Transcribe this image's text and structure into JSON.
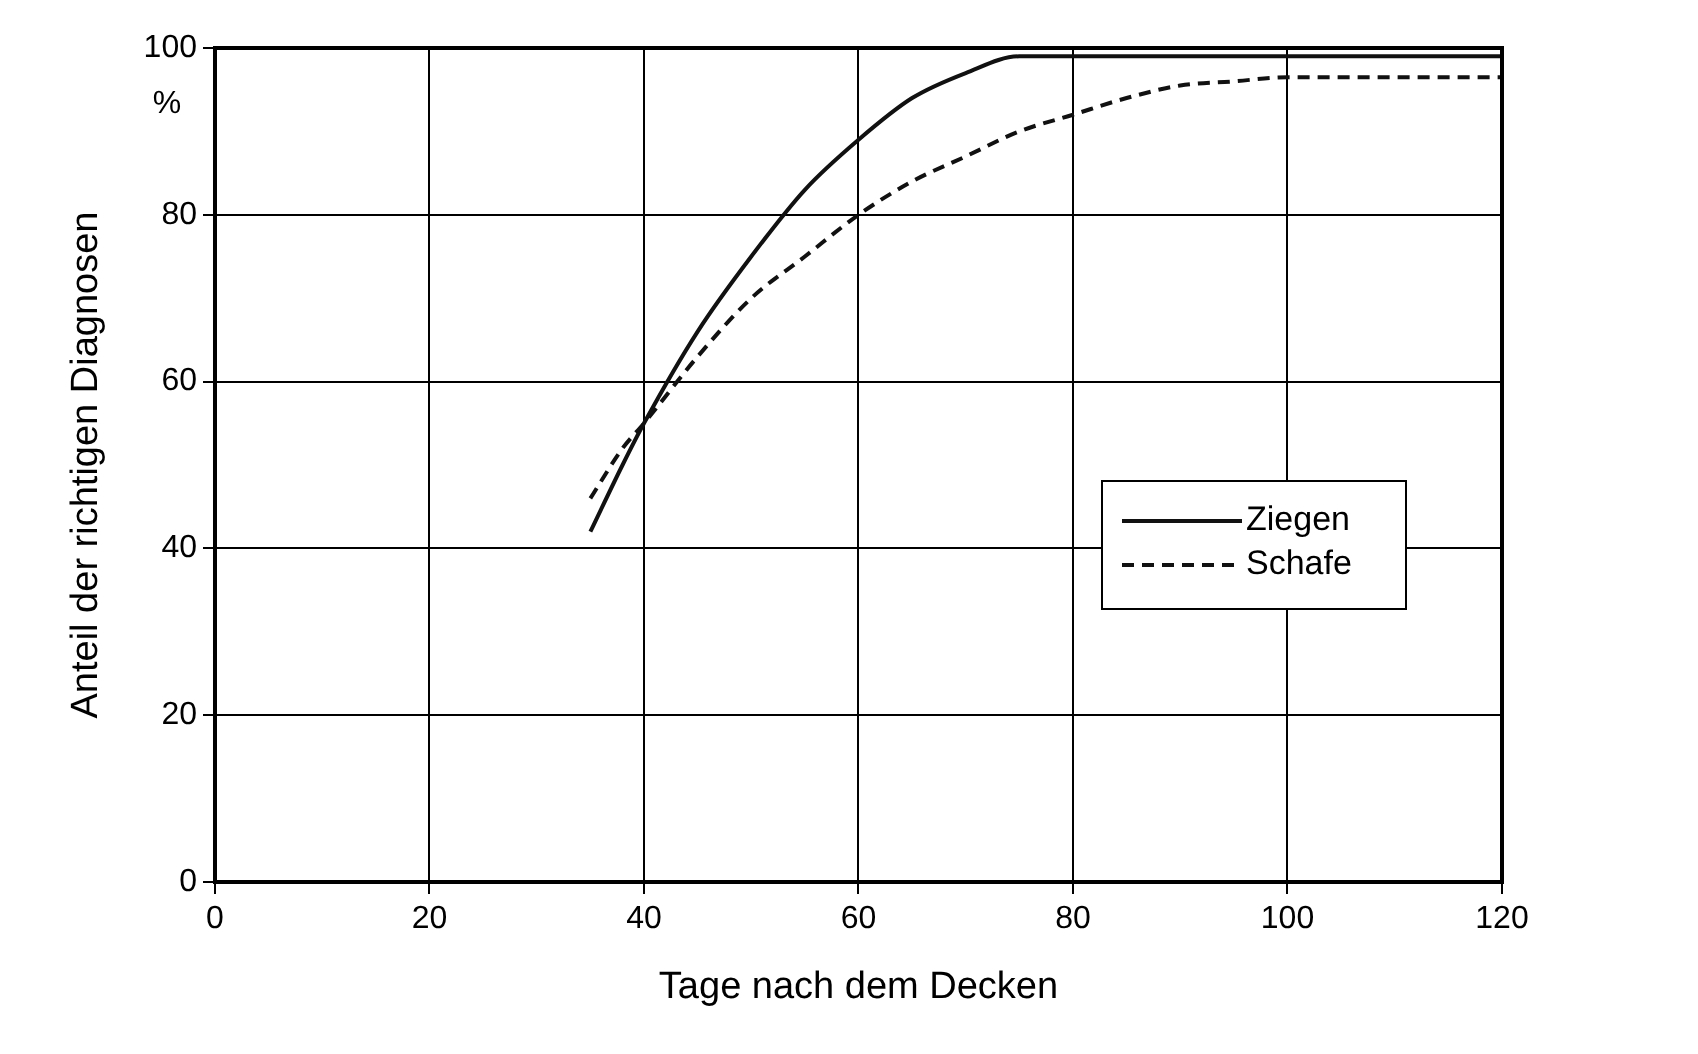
{
  "chart_data": {
    "type": "line",
    "xlabel": "Tage nach dem Decken",
    "ylabel": "Anteil der richtigen Diagnosen",
    "annotations": [
      "%"
    ],
    "xlim": [
      0,
      120
    ],
    "xticks": [
      0,
      20,
      40,
      60,
      80,
      100,
      120
    ],
    "ylim": [
      0,
      100
    ],
    "yticks": [
      0,
      20,
      40,
      60,
      80,
      100
    ],
    "grid": true,
    "legend": "right",
    "marker": "none",
    "series": [
      {
        "name": "Ziegen",
        "color": "#111111",
        "line_style": "solid",
        "x": [
          35,
          38,
          40,
          45,
          50,
          55,
          60,
          65,
          70,
          75,
          80,
          90,
          100,
          110,
          120
        ],
        "values": [
          42,
          50,
          55,
          66,
          75,
          83,
          89,
          94,
          97,
          99,
          99,
          99,
          99,
          99,
          99
        ]
      },
      {
        "name": "Schafe",
        "color": "#111111",
        "line_style": "dashed",
        "x": [
          35,
          38,
          40,
          45,
          50,
          55,
          60,
          65,
          70,
          75,
          80,
          85,
          90,
          95,
          100,
          110,
          120
        ],
        "values": [
          46,
          52,
          55,
          63,
          70,
          75,
          80,
          84,
          87,
          90,
          92,
          94,
          95.5,
          96,
          96.5,
          96.5,
          96.5
        ]
      }
    ]
  }
}
